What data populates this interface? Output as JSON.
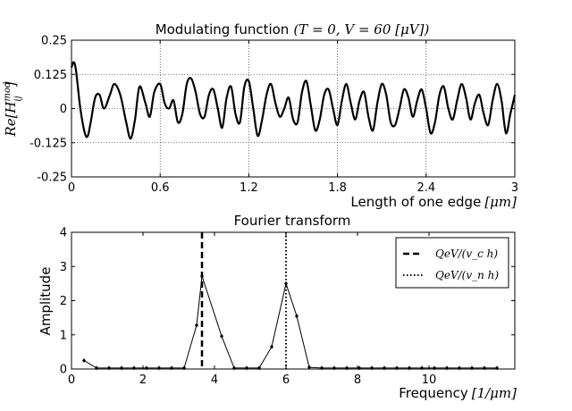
{
  "chart_data": [
    {
      "type": "line",
      "title": "Modulating function",
      "title_math": "(T = 0, V = 60 [μV])",
      "xlabel": "Length of one edge",
      "xlabel_unit": "[μm]",
      "ylabel": "Re[H",
      "ylabel_sup": "mod",
      "ylabel_sub": "ij",
      "ylabel_close": "]",
      "xlim": [
        0,
        3
      ],
      "ylim": [
        -0.25,
        0.25
      ],
      "grid": true,
      "xticks": [
        0,
        0.6,
        1.2,
        1.8,
        2.4,
        3
      ],
      "xtick_labels": [
        "0",
        "0.6",
        "1.2",
        "1.8",
        "2.4",
        "3"
      ],
      "yticks": [
        -0.25,
        -0.125,
        0,
        0.125,
        0.25
      ],
      "ytick_labels": [
        "-0.25",
        "-0.125",
        "0",
        "0.125",
        "0.25"
      ],
      "series": [
        {
          "x": [
            0,
            0.015,
            0.03,
            0.06,
            0.09,
            0.11,
            0.13,
            0.16,
            0.19,
            0.22,
            0.26,
            0.29,
            0.33,
            0.37,
            0.4,
            0.43,
            0.46,
            0.5,
            0.53,
            0.56,
            0.6,
            0.63,
            0.66,
            0.69,
            0.72,
            0.75,
            0.78,
            0.81,
            0.84,
            0.87,
            0.9,
            0.93,
            0.96,
            0.99,
            1.02,
            1.05,
            1.08,
            1.11,
            1.14,
            1.17,
            1.2,
            1.23,
            1.26,
            1.29,
            1.32,
            1.35,
            1.38,
            1.41,
            1.44,
            1.47,
            1.5,
            1.53,
            1.56,
            1.59,
            1.62,
            1.65,
            1.68,
            1.71,
            1.74,
            1.77,
            1.8,
            1.83,
            1.86,
            1.89,
            1.92,
            1.95,
            1.98,
            2.01,
            2.04,
            2.07,
            2.1,
            2.13,
            2.16,
            2.19,
            2.22,
            2.25,
            2.28,
            2.31,
            2.34,
            2.37,
            2.4,
            2.43,
            2.46,
            2.49,
            2.52,
            2.55,
            2.58,
            2.61,
            2.64,
            2.67,
            2.7,
            2.73,
            2.76,
            2.79,
            2.82,
            2.85,
            2.88,
            2.91,
            2.94,
            2.97,
            3.0
          ],
          "y": [
            0.15,
            0.17,
            0.14,
            0.0,
            -0.09,
            -0.1,
            -0.05,
            0.04,
            0.05,
            0.0,
            0.05,
            0.09,
            0.05,
            -0.05,
            -0.11,
            -0.04,
            0.08,
            0.02,
            -0.03,
            0.06,
            0.09,
            0.02,
            0.0,
            0.03,
            -0.05,
            -0.02,
            0.09,
            0.11,
            0.06,
            -0.02,
            -0.03,
            0.05,
            0.07,
            0.0,
            -0.07,
            0.04,
            0.08,
            -0.02,
            -0.05,
            0.08,
            0.1,
            0.0,
            -0.1,
            -0.04,
            0.05,
            0.09,
            0.02,
            -0.03,
            0.0,
            0.04,
            -0.04,
            -0.05,
            0.06,
            0.1,
            0.01,
            -0.08,
            -0.04,
            0.05,
            0.07,
            0.0,
            -0.06,
            0.03,
            0.09,
            0.02,
            -0.04,
            0.03,
            0.06,
            -0.03,
            -0.08,
            0.02,
            0.09,
            0.05,
            -0.05,
            -0.06,
            0.0,
            0.07,
            0.04,
            -0.03,
            0.03,
            0.07,
            0.0,
            -0.09,
            -0.05,
            0.05,
            0.08,
            0.0,
            -0.04,
            0.03,
            0.09,
            0.04,
            -0.04,
            0.02,
            0.05,
            -0.02,
            -0.06,
            0.03,
            0.09,
            0.03,
            -0.09,
            -0.02,
            0.05
          ]
        }
      ]
    },
    {
      "type": "line",
      "title": "Fourier transform",
      "xlabel": "Frequency",
      "xlabel_unit": "[1/μm]",
      "ylabel": "Amplitude",
      "xlim": [
        0,
        12.4
      ],
      "ylim": [
        0,
        4
      ],
      "grid": false,
      "xticks": [
        0,
        2,
        4,
        6,
        8,
        10
      ],
      "xtick_labels": [
        "0",
        "2",
        "4",
        "6",
        "8",
        "10"
      ],
      "yticks": [
        0,
        1,
        2,
        3,
        4
      ],
      "ytick_labels": [
        "0",
        "1",
        "2",
        "3",
        "4"
      ],
      "series": [
        {
          "x": [
            0.35,
            0.7,
            1.05,
            1.4,
            1.75,
            2.1,
            2.45,
            2.8,
            3.15,
            3.5,
            3.65,
            4.2,
            4.55,
            4.9,
            5.25,
            5.6,
            6.0,
            6.3,
            6.65,
            7.0,
            7.35,
            7.7,
            8.05,
            8.4,
            8.75,
            9.1,
            9.45,
            9.8,
            10.15,
            10.5,
            10.85,
            11.2,
            11.55,
            11.9
          ],
          "y": [
            0.25,
            0.03,
            0.03,
            0.03,
            0.03,
            0.03,
            0.03,
            0.03,
            0.03,
            1.28,
            2.72,
            0.96,
            0.03,
            0.03,
            0.03,
            0.65,
            2.5,
            1.55,
            0.05,
            0.03,
            0.03,
            0.03,
            0.03,
            0.03,
            0.03,
            0.03,
            0.03,
            0.03,
            0.03,
            0.03,
            0.03,
            0.03,
            0.03,
            0.03
          ]
        }
      ],
      "vlines": [
        {
          "name": "QeV/(v_c h)",
          "x": 3.65,
          "style": "dashed"
        },
        {
          "name": "QeV/(v_n h)",
          "x": 6.0,
          "style": "dotted"
        }
      ],
      "legend": {
        "placement": "top-right",
        "entries": [
          "QeV/(v_c h)",
          "QeV/(v_n h)"
        ]
      }
    }
  ]
}
